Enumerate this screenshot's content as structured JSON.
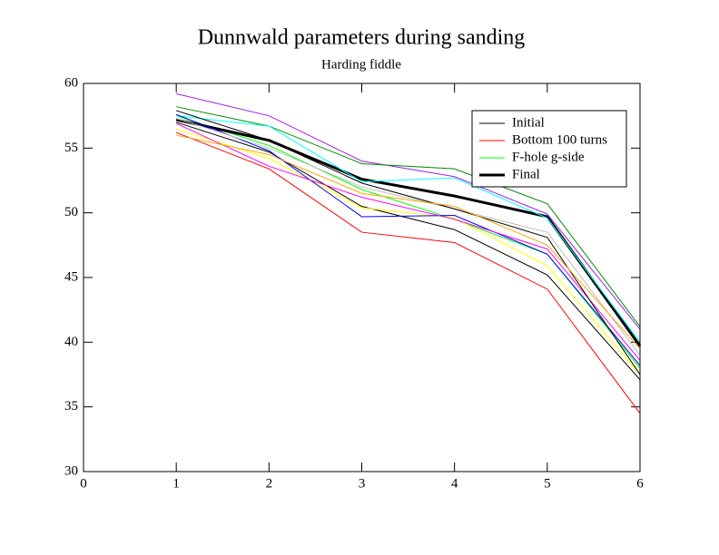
{
  "chart_data": {
    "type": "line",
    "title": "Dunnwald parameters during sanding",
    "subtitle": "Harding fiddle",
    "x": [
      1,
      2,
      3,
      4,
      5,
      6
    ],
    "xlim": [
      0,
      6
    ],
    "xticks": [
      0,
      1,
      2,
      3,
      4,
      5,
      6
    ],
    "ylim": [
      30,
      60
    ],
    "yticks": [
      30,
      35,
      40,
      45,
      50,
      55,
      60
    ],
    "legend": "upper-right",
    "series": [
      {
        "name": "Initial",
        "color": "#000000",
        "values": [
          57.0,
          54.7,
          50.5,
          48.7,
          45.2,
          37.1
        ]
      },
      {
        "name": "Bottom 100 turns",
        "color": "#ff0000",
        "values": [
          56.2,
          53.4,
          48.5,
          47.7,
          44.1,
          34.5
        ]
      },
      {
        "name": "F-hole g-side",
        "color": "#00ff00",
        "values": [
          57.5,
          55.2,
          51.8,
          49.5,
          46.8,
          38.0
        ]
      },
      {
        "name": "Final",
        "color": "#000000",
        "linewidth": 3,
        "values": [
          57.2,
          55.6,
          52.6,
          51.3,
          49.7,
          39.7
        ]
      },
      {
        "color": "#a020f0",
        "values": [
          59.2,
          57.5,
          54.0,
          52.8,
          49.9,
          41.0
        ]
      },
      {
        "color": "#008b00",
        "values": [
          58.2,
          56.7,
          53.8,
          53.4,
          50.7,
          41.2
        ]
      },
      {
        "color": "#00ffff",
        "values": [
          57.5,
          56.7,
          52.4,
          52.7,
          49.6,
          40.0
        ]
      },
      {
        "color": "#ffff00",
        "values": [
          56.5,
          54.2,
          50.4,
          49.6,
          45.9,
          37.5
        ]
      },
      {
        "color": "#0000ff",
        "values": [
          57.6,
          54.8,
          49.7,
          49.8,
          46.8,
          38.2
        ]
      },
      {
        "color": "#ff00ff",
        "values": [
          56.9,
          53.6,
          51.2,
          49.5,
          47.2,
          38.6
        ]
      },
      {
        "color": "#bebebe",
        "values": [
          57.3,
          55.0,
          52.0,
          50.3,
          48.5,
          39.0
        ]
      },
      {
        "color": "#000000",
        "values": [
          57.9,
          55.6,
          52.3,
          50.3,
          48.1,
          37.5
        ]
      },
      {
        "color": "#ffa500",
        "values": [
          56.0,
          54.5,
          51.5,
          50.5,
          47.5,
          39.5
        ]
      }
    ]
  }
}
